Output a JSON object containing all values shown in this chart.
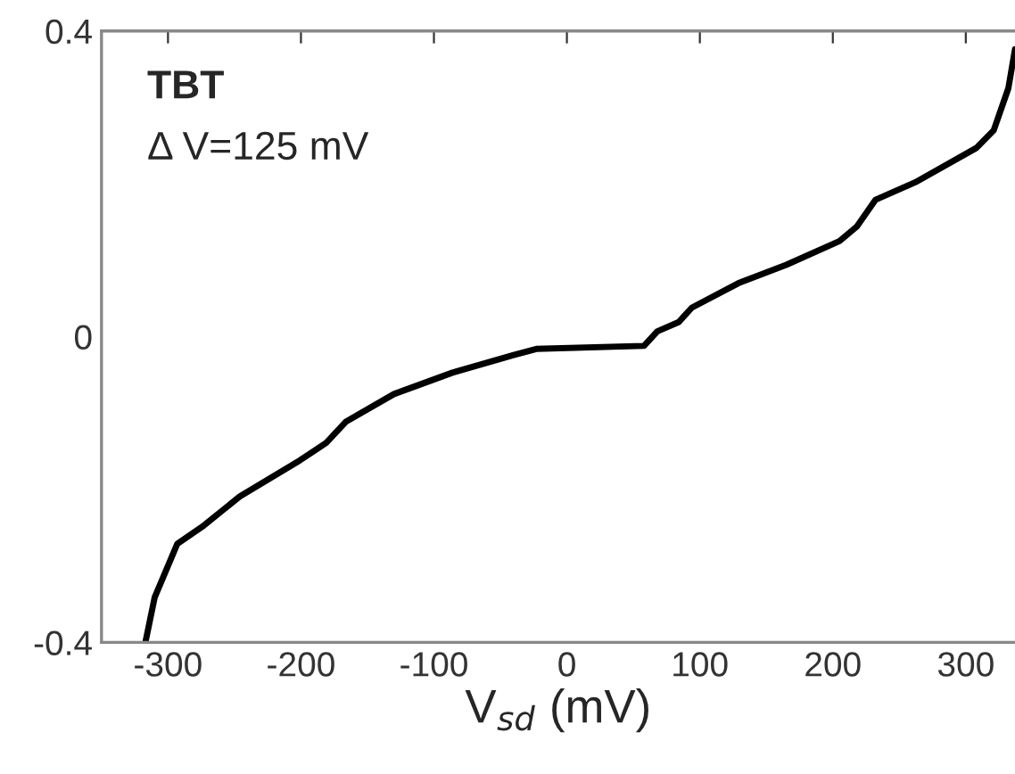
{
  "chart_data": {
    "type": "line",
    "xlabel": "V$_{sd}$ (mV)",
    "annotations": [
      "TBT",
      "Δ V=125 mV"
    ],
    "x": [
      -317,
      -310,
      -293,
      -273,
      -246,
      -201,
      -181,
      -166,
      -130,
      -86,
      -40,
      -23,
      58,
      68,
      84,
      94,
      129,
      165,
      205,
      218,
      232,
      262,
      308,
      321,
      332,
      337
    ],
    "series": [
      {
        "color": "#000000",
        "values": [
          -0.4,
          -0.341,
          -0.271,
          -0.247,
          -0.209,
          -0.162,
          -0.139,
          -0.111,
          -0.075,
          -0.047,
          -0.024,
          -0.016,
          -0.012,
          0.007,
          0.019,
          0.038,
          0.07,
          0.094,
          0.125,
          0.144,
          0.179,
          0.202,
          0.247,
          0.27,
          0.325,
          0.376
        ]
      }
    ],
    "xlim": [
      -350,
      337
    ],
    "ylim": [
      -0.4,
      0.4
    ],
    "xticks": [
      -300,
      -200,
      -100,
      0,
      100,
      200,
      300
    ],
    "yticks": [
      -0.4,
      0,
      0.4
    ],
    "grid": false,
    "legend": false,
    "marker": "none",
    "line_style": "solid"
  }
}
